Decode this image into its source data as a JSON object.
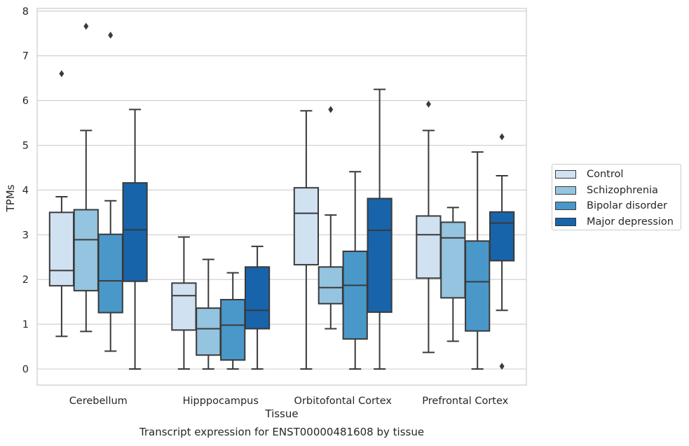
{
  "chart_data": {
    "type": "box",
    "title": "",
    "caption": "Transcript expression for ENST00000481608 by tissue",
    "xlabel": "Tissue",
    "ylabel": "TPMs",
    "ylim": [
      -0.35,
      8.05
    ],
    "yticks": [
      "0",
      "1",
      "2",
      "3",
      "4",
      "5",
      "6",
      "7",
      "8"
    ],
    "grid": "horizontal",
    "legend_position": "right",
    "categories": [
      "Cerebellum",
      "Hipppocampus",
      "Orbitofontal Cortex",
      "Prefrontal Cortex"
    ],
    "series": [
      {
        "name": "Control",
        "color": "#d0e1f2",
        "boxes": [
          {
            "whislo": 0.73,
            "q1": 1.86,
            "med": 2.2,
            "q3": 3.5,
            "whishi": 3.85,
            "fliers": [
              6.6
            ]
          },
          {
            "whislo": 0.0,
            "q1": 0.87,
            "med": 1.64,
            "q3": 1.92,
            "whishi": 2.95,
            "fliers": []
          },
          {
            "whislo": 0.0,
            "q1": 2.33,
            "med": 3.48,
            "q3": 4.05,
            "whishi": 5.77,
            "fliers": []
          },
          {
            "whislo": 0.37,
            "q1": 2.03,
            "med": 3.0,
            "q3": 3.42,
            "whishi": 5.33,
            "fliers": [
              5.92
            ]
          }
        ]
      },
      {
        "name": "Schizophrenia",
        "color": "#94c4df",
        "boxes": [
          {
            "whislo": 0.84,
            "q1": 1.75,
            "med": 2.89,
            "q3": 3.56,
            "whishi": 5.33,
            "fliers": [
              7.66
            ]
          },
          {
            "whislo": 0.0,
            "q1": 0.31,
            "med": 0.9,
            "q3": 1.36,
            "whishi": 2.45,
            "fliers": []
          },
          {
            "whislo": 0.9,
            "q1": 1.46,
            "med": 1.82,
            "q3": 2.28,
            "whishi": 3.44,
            "fliers": [
              5.8
            ]
          },
          {
            "whislo": 0.62,
            "q1": 1.59,
            "med": 2.93,
            "q3": 3.28,
            "whishi": 3.61,
            "fliers": []
          }
        ]
      },
      {
        "name": "Bipolar disorder",
        "color": "#4a98c9",
        "boxes": [
          {
            "whislo": 0.4,
            "q1": 1.26,
            "med": 1.97,
            "q3": 3.01,
            "whishi": 3.76,
            "fliers": [
              7.46
            ]
          },
          {
            "whislo": 0.0,
            "q1": 0.2,
            "med": 0.98,
            "q3": 1.55,
            "whishi": 2.15,
            "fliers": []
          },
          {
            "whislo": 0.0,
            "q1": 0.67,
            "med": 1.87,
            "q3": 2.63,
            "whishi": 4.41,
            "fliers": []
          },
          {
            "whislo": 0.0,
            "q1": 0.85,
            "med": 1.95,
            "q3": 2.86,
            "whishi": 4.85,
            "fliers": []
          }
        ]
      },
      {
        "name": "Major depression",
        "color": "#1764ab",
        "boxes": [
          {
            "whislo": 0.0,
            "q1": 1.96,
            "med": 3.11,
            "q3": 4.16,
            "whishi": 5.8,
            "fliers": []
          },
          {
            "whislo": 0.0,
            "q1": 0.9,
            "med": 1.31,
            "q3": 2.28,
            "whishi": 2.74,
            "fliers": []
          },
          {
            "whislo": 0.0,
            "q1": 1.27,
            "med": 3.1,
            "q3": 3.81,
            "whishi": 6.25,
            "fliers": []
          },
          {
            "whislo": 1.31,
            "q1": 2.42,
            "med": 3.26,
            "q3": 3.51,
            "whishi": 4.32,
            "fliers": [
              5.19,
              0.06
            ]
          }
        ]
      }
    ]
  }
}
